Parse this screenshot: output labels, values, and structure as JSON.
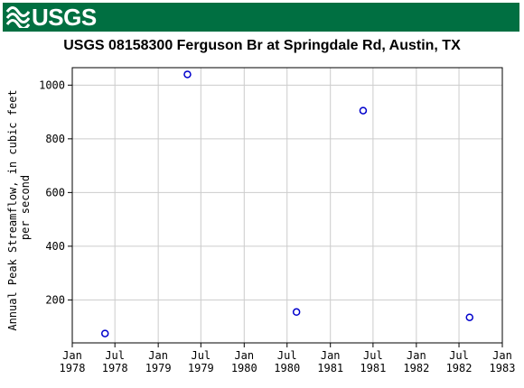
{
  "header": {
    "logo_text": "USGS",
    "brand_color": "#006f41"
  },
  "chart_data": {
    "type": "scatter",
    "title": "USGS 08158300 Ferguson Br at Springdale Rd, Austin, TX",
    "ylabel_line1": "Annual Peak Streamflow, in cubic feet",
    "ylabel_line2": "per second",
    "xlabel": "",
    "marker_color": "#0000cc",
    "grid": true,
    "xlim": [
      "1978-01-01",
      "1983-01-01"
    ],
    "ylim": [
      40,
      1065
    ],
    "yticks": [
      200,
      400,
      600,
      800,
      1000
    ],
    "xticks": [
      {
        "date": "1978-01-01",
        "line1": "Jan",
        "line2": "1978"
      },
      {
        "date": "1978-07-01",
        "line1": "Jul",
        "line2": "1978"
      },
      {
        "date": "1979-01-01",
        "line1": "Jan",
        "line2": "1979"
      },
      {
        "date": "1979-07-01",
        "line1": "Jul",
        "line2": "1979"
      },
      {
        "date": "1980-01-01",
        "line1": "Jan",
        "line2": "1980"
      },
      {
        "date": "1980-07-01",
        "line1": "Jul",
        "line2": "1980"
      },
      {
        "date": "1981-01-01",
        "line1": "Jan",
        "line2": "1981"
      },
      {
        "date": "1981-07-01",
        "line1": "Jul",
        "line2": "1981"
      },
      {
        "date": "1982-01-01",
        "line1": "Jan",
        "line2": "1982"
      },
      {
        "date": "1982-07-01",
        "line1": "Jul",
        "line2": "1982"
      },
      {
        "date": "1983-01-01",
        "line1": "Jan",
        "line2": "1983"
      }
    ],
    "points": [
      {
        "date": "1978-05-20",
        "value": 75
      },
      {
        "date": "1979-05-05",
        "value": 1040
      },
      {
        "date": "1980-08-10",
        "value": 155
      },
      {
        "date": "1981-05-20",
        "value": 905
      },
      {
        "date": "1982-08-15",
        "value": 135
      }
    ]
  }
}
